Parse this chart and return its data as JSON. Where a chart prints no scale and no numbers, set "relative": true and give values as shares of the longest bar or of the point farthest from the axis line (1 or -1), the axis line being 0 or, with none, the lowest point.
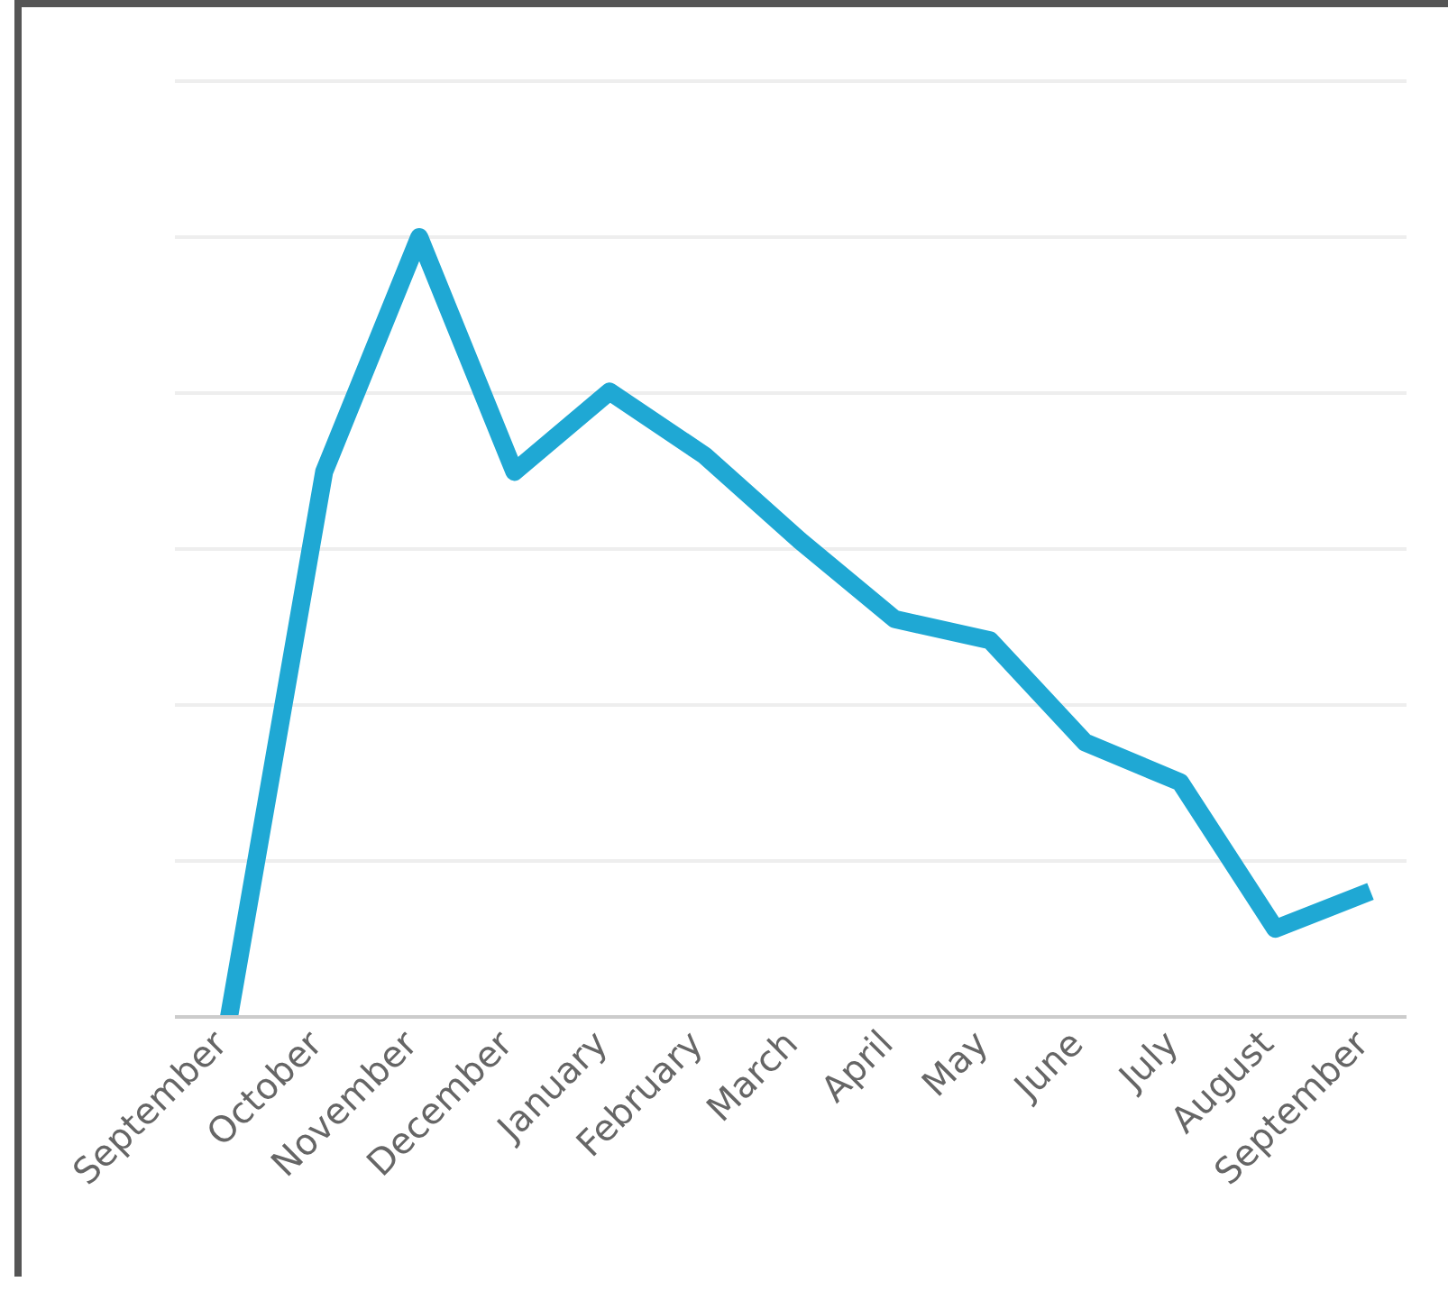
{
  "chart_data": {
    "type": "line",
    "relative": true,
    "categories": [
      "September",
      "October",
      "November",
      "December",
      "January",
      "February",
      "March",
      "April",
      "May",
      "June",
      "July",
      "August",
      "September"
    ],
    "series": [
      {
        "color": "#1fa8d4",
        "values": [
          0,
          0.699,
          1,
          0.699,
          0.802,
          0.72,
          0.611,
          0.51,
          0.483,
          0.352,
          0.301,
          0.113,
          0.161
        ]
      }
    ],
    "grid": "y",
    "marker": "none",
    "line_style": "solid"
  }
}
